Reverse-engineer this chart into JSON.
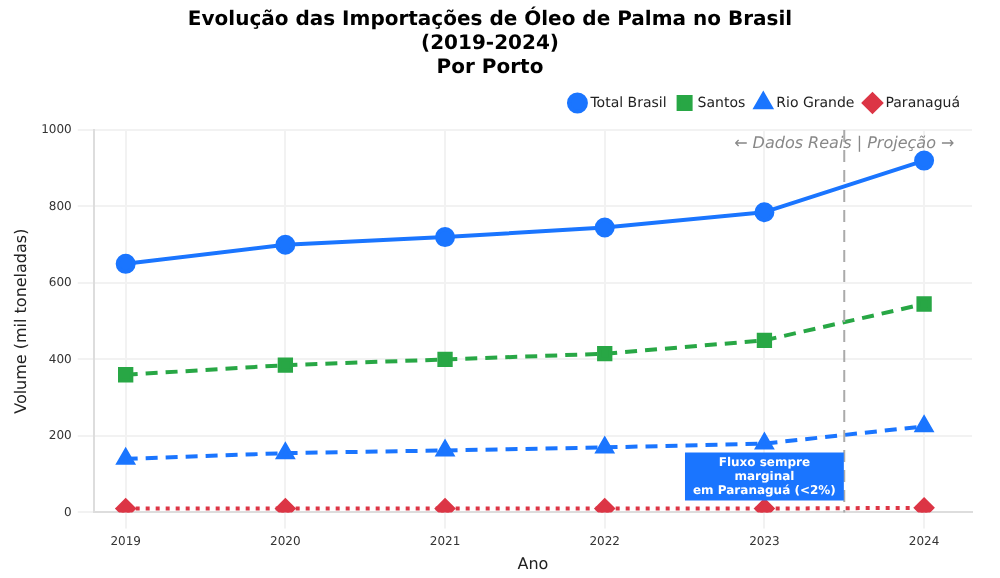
{
  "chart_data": {
    "type": "line",
    "title": "Evolução das Importações de Óleo de Palma no Brasil\n(2019-2024)\nPor Porto",
    "xlabel": "Ano",
    "ylabel": "Volume (mil toneladas)",
    "x": [
      2019,
      2020,
      2021,
      2022,
      2023,
      2024
    ],
    "xlim": [
      2018.8,
      2024.3
    ],
    "xticks": [
      2019,
      2020,
      2021,
      2022,
      2023,
      2024
    ],
    "ylim": [
      0,
      1000
    ],
    "yticks": [
      0,
      200,
      400,
      600,
      800,
      1000
    ],
    "grid": true,
    "legend": "top right",
    "series": [
      {
        "name": "Total Brasil",
        "color": "#1a75ff",
        "values": [
          650,
          700,
          720,
          745,
          785,
          920
        ],
        "marker": "circle",
        "line_style": "solid"
      },
      {
        "name": "Santos",
        "color": "#28a745",
        "values": [
          360,
          385,
          400,
          415,
          450,
          545
        ],
        "marker": "square",
        "line_style": "dashed"
      },
      {
        "name": "Rio Grande",
        "color": "#1a75ff",
        "values": [
          140,
          155,
          162,
          170,
          180,
          225
        ],
        "marker": "triangle",
        "line_style": "dashed"
      },
      {
        "name": "Paranaguá",
        "color": "#dc3545",
        "values": [
          10,
          10,
          10,
          10,
          10,
          12
        ],
        "marker": "diamond",
        "line_style": "dotted"
      }
    ],
    "ref_lines": [
      {
        "axis": "x",
        "value": 2023.5,
        "label": "← Dados Reais | Projeção →",
        "color": "#aaaaaa",
        "line_style": "dashed"
      }
    ],
    "annotations": [
      {
        "text": "Fluxo sempre\nmarginal\nem Paranaguá (<2%)",
        "x": 2023,
        "y": 10
      }
    ]
  }
}
